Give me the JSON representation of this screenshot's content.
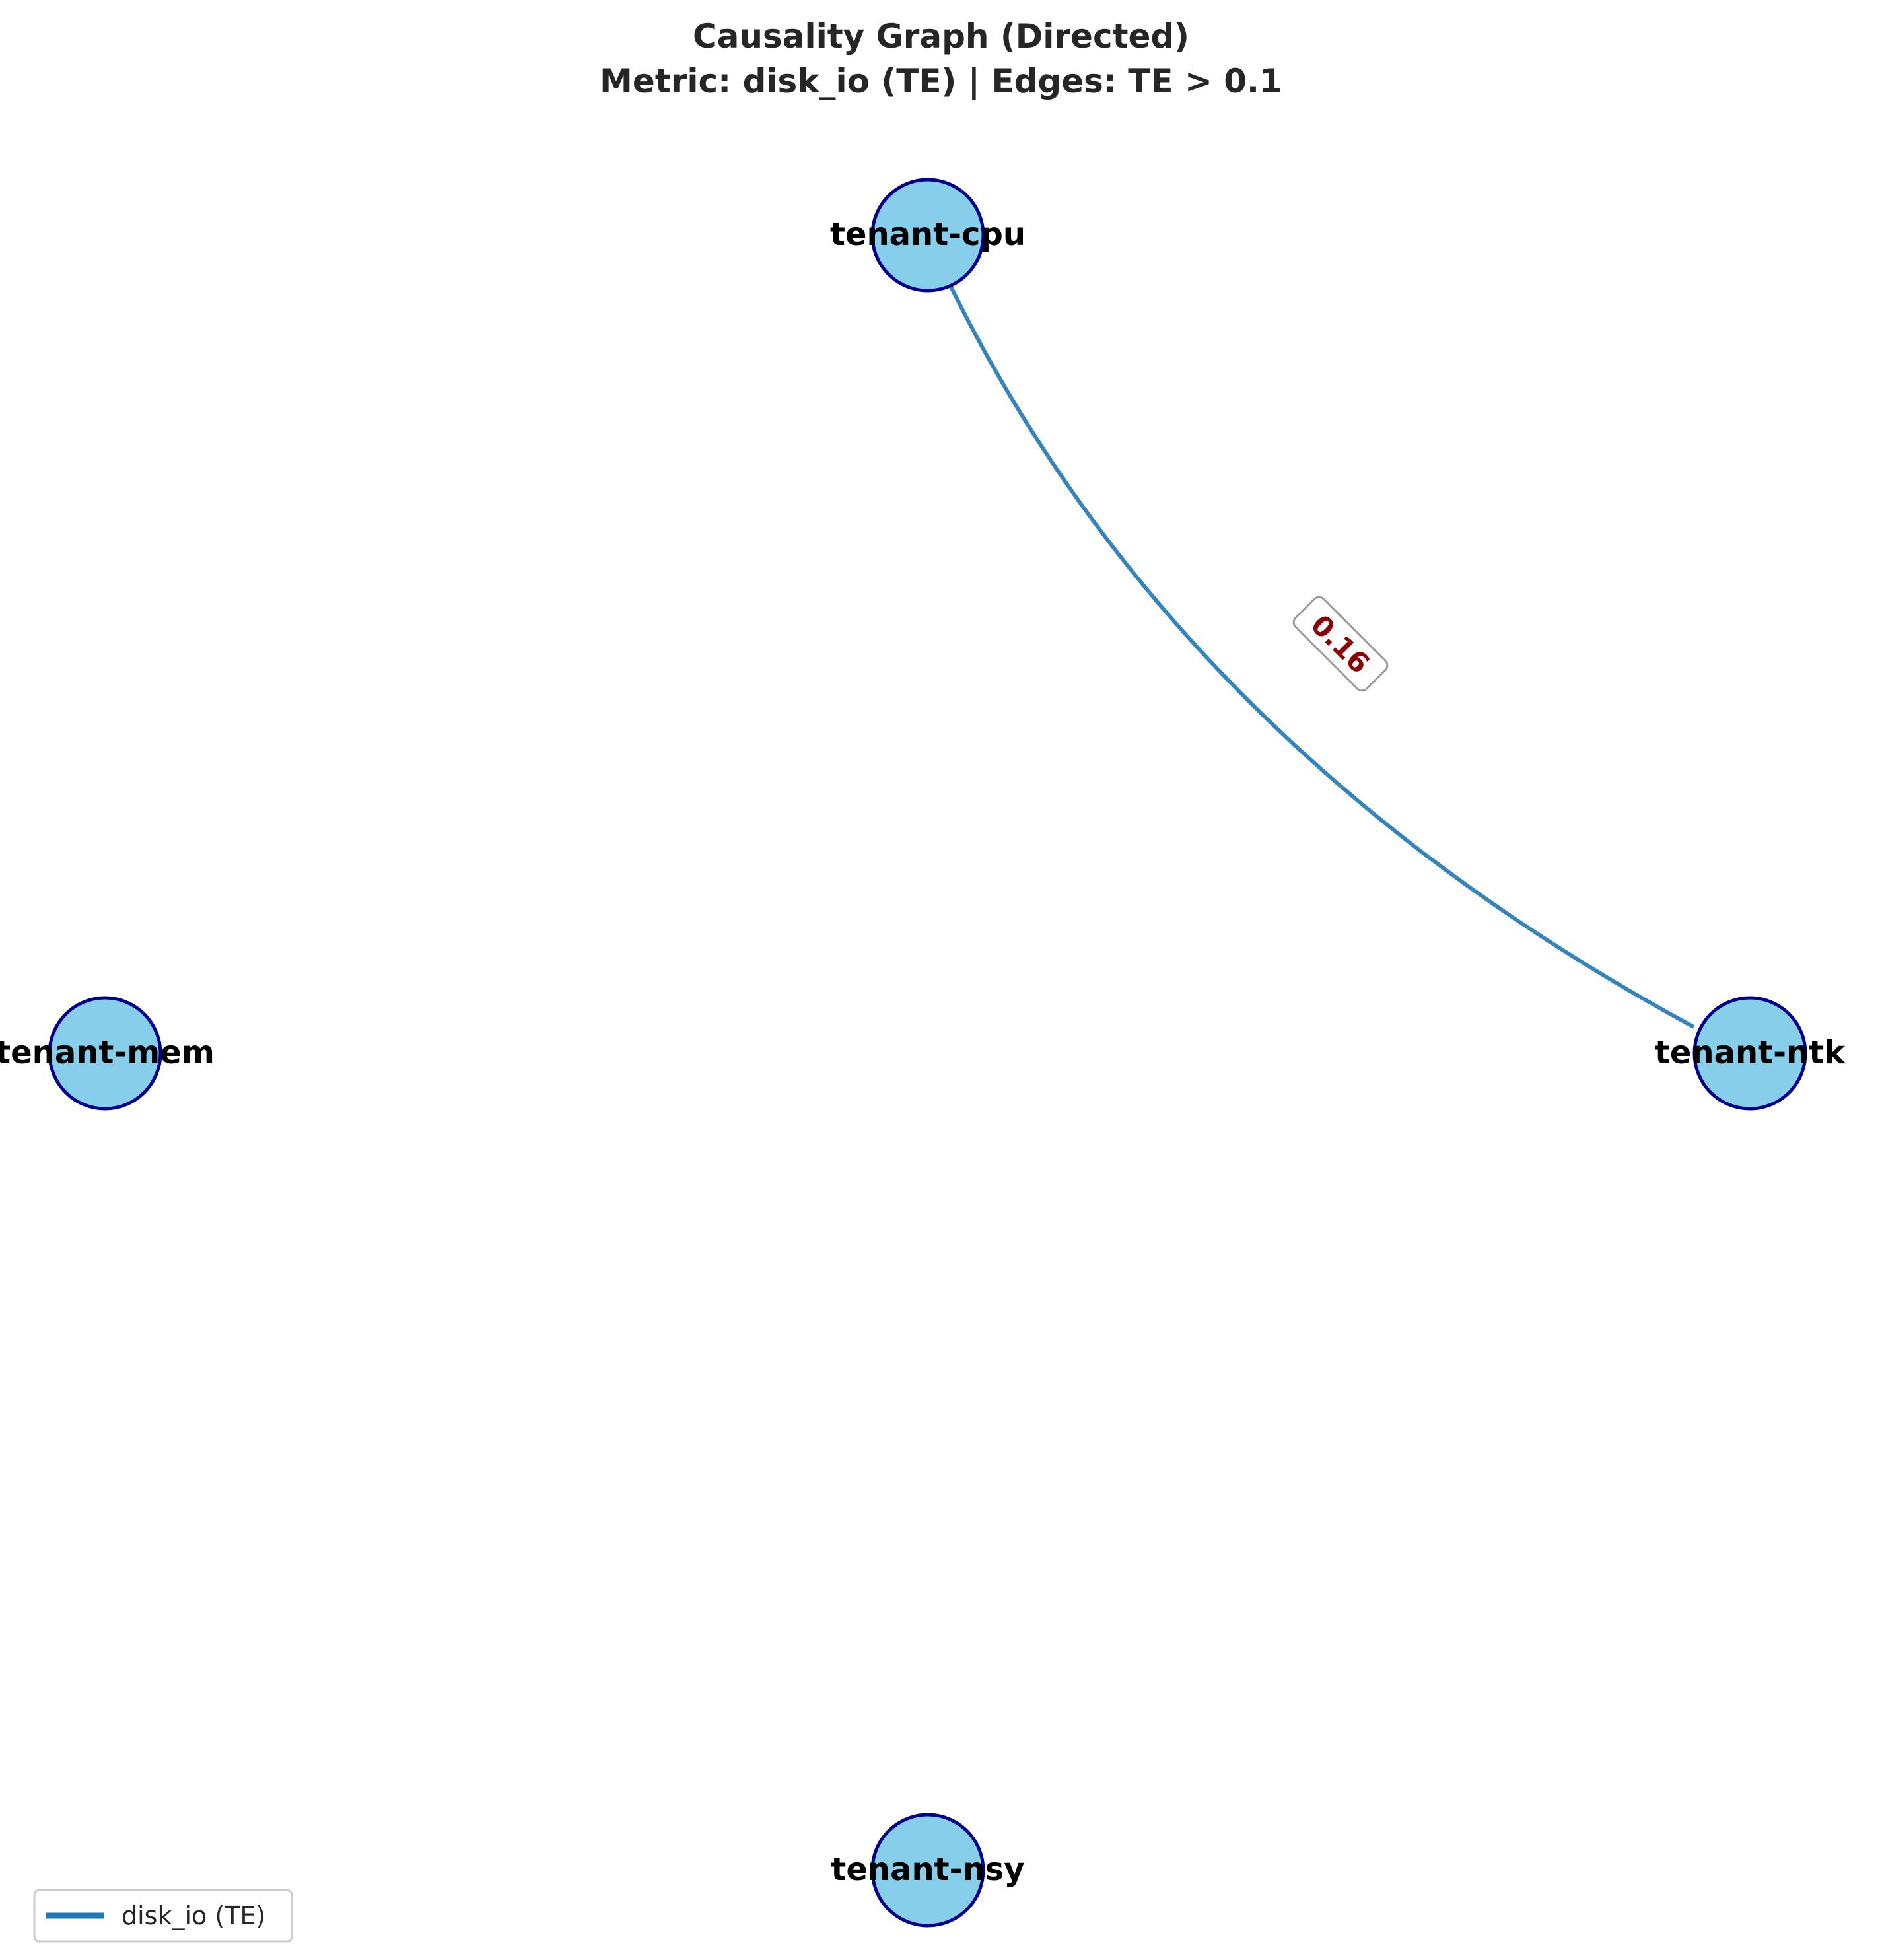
{
  "title": {
    "line1": "Causality Graph (Directed)",
    "line2": "Metric: disk_io (TE) | Edges: TE > 0.1"
  },
  "nodes": [
    {
      "id": "cpu",
      "label": "tenant-cpu"
    },
    {
      "id": "ntk",
      "label": "tenant-ntk"
    },
    {
      "id": "mem",
      "label": "tenant-mem"
    },
    {
      "id": "nsy",
      "label": "tenant-nsy"
    }
  ],
  "edges": [
    {
      "from": "cpu",
      "to": "ntk",
      "weight": "0.16"
    }
  ],
  "legend": {
    "placement": "lower-left",
    "items": [
      {
        "label": "disk_io (TE)"
      }
    ]
  },
  "colors": {
    "node_fill": "#87CEEB",
    "node_stroke": "#00008B",
    "edge": "#1f77b4",
    "edge_label": "#8B0000",
    "title": "#262626"
  }
}
